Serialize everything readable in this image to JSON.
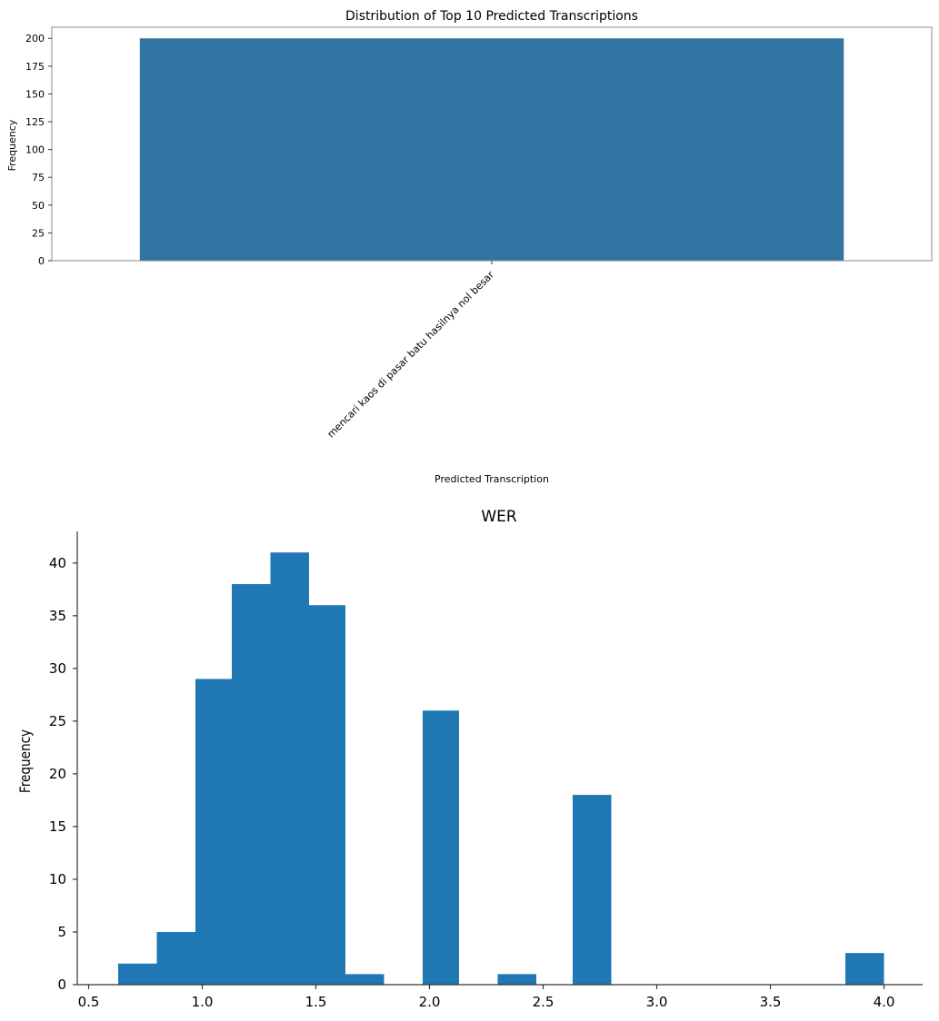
{
  "chart_data": [
    {
      "type": "bar",
      "title": "Distribution of Top 10 Predicted Transcriptions",
      "xlabel": "Predicted Transcription",
      "ylabel": "Frequency",
      "categories": [
        "mencari kaos di pasar batu hasilnya nol besar"
      ],
      "values": [
        200
      ],
      "ylim": [
        0,
        210
      ],
      "yticks": [
        0,
        25,
        50,
        75,
        100,
        125,
        150,
        175,
        200
      ],
      "color": "#3274a1",
      "grid": false
    },
    {
      "type": "bar",
      "subtype": "histogram",
      "title": "WER",
      "xlabel": "",
      "ylabel": "Frequency",
      "bins": [
        {
          "x0": 0.63,
          "x1": 0.8,
          "count": 2
        },
        {
          "x0": 0.8,
          "x1": 0.97,
          "count": 5
        },
        {
          "x0": 0.97,
          "x1": 1.13,
          "count": 29
        },
        {
          "x0": 1.13,
          "x1": 1.3,
          "count": 38
        },
        {
          "x0": 1.3,
          "x1": 1.47,
          "count": 41
        },
        {
          "x0": 1.47,
          "x1": 1.63,
          "count": 36
        },
        {
          "x0": 1.63,
          "x1": 1.8,
          "count": 1
        },
        {
          "x0": 1.97,
          "x1": 2.13,
          "count": 26
        },
        {
          "x0": 2.3,
          "x1": 2.47,
          "count": 1
        },
        {
          "x0": 2.63,
          "x1": 2.8,
          "count": 18
        },
        {
          "x0": 3.83,
          "x1": 4.0,
          "count": 3
        }
      ],
      "xlim": [
        0.45,
        4.17
      ],
      "ylim": [
        0,
        43
      ],
      "xticks": [
        "0.5",
        "1.0",
        "1.5",
        "2.0",
        "2.5",
        "3.0",
        "3.5",
        "4.0"
      ],
      "yticks": [
        0,
        5,
        10,
        15,
        20,
        25,
        30,
        35,
        40
      ],
      "color": "#1f77b4",
      "grid": false
    }
  ]
}
